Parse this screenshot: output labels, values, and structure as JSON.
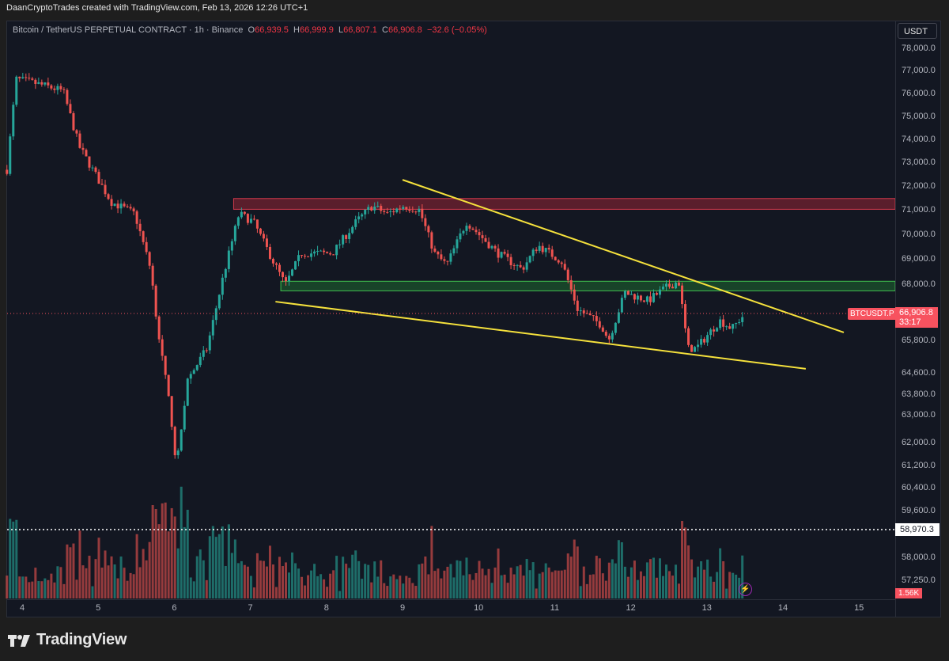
{
  "credit": "DaanCryptoTrades created with TradingView.com, Feb 13, 2026 12:26 UTC+1",
  "legend": {
    "symbol": "Bitcoin / TetherUS PERPETUAL CONTRACT · 1h · Binance",
    "o_label": "O",
    "o": "66,939.5",
    "h_label": "H",
    "h": "66,999.9",
    "l_label": "L",
    "l": "66,807.1",
    "c_label": "C",
    "c": "66,906.8",
    "change": "−32.6 (−0.05%)"
  },
  "currency_button": "USDT",
  "symbol_tag": "BTCUSDT.P",
  "last_price": "66,906.8",
  "countdown": "33:17",
  "low_marker": "58,970.3",
  "volume_label": "1.56K",
  "logo_text": "TradingView",
  "colors": {
    "up": "#26a69a",
    "down": "#ef5350",
    "trendline": "#f5e13c",
    "resistance_zone": "#b2283a",
    "support_zone": "#1e7a32",
    "price_line": "#f7525f",
    "background": "#131722"
  },
  "chart_data": {
    "type": "candlestick",
    "interval": "1h",
    "price_ticks": [
      "78,000.0",
      "77,000.0",
      "76,000.0",
      "75,000.0",
      "74,000.0",
      "73,000.0",
      "72,000.0",
      "71,000.0",
      "70,000.0",
      "69,000.0",
      "68,000.0",
      "65,800.0",
      "64,600.0",
      "63,800.0",
      "63,000.0",
      "62,000.0",
      "61,200.0",
      "60,400.0",
      "59,600.0",
      "58,000.0",
      "57,250.0"
    ],
    "time_ticks": [
      "4",
      "5",
      "6",
      "7",
      "8",
      "9",
      "10",
      "11",
      "12",
      "13",
      "14",
      "15"
    ],
    "price_path": [
      [
        3.8,
        72900
      ],
      [
        3.92,
        76670
      ],
      [
        4.18,
        76500
      ],
      [
        4.54,
        76180
      ],
      [
        4.75,
        73870
      ],
      [
        5.17,
        71560
      ],
      [
        5.48,
        71060
      ],
      [
        5.69,
        68750
      ],
      [
        5.79,
        66110
      ],
      [
        5.95,
        62810
      ],
      [
        6.03,
        60500
      ],
      [
        6.17,
        64130
      ],
      [
        6.43,
        65450
      ],
      [
        6.64,
        68420
      ],
      [
        6.85,
        71060
      ],
      [
        7.04,
        70730
      ],
      [
        7.3,
        69080
      ],
      [
        7.46,
        68100
      ],
      [
        7.67,
        69420
      ],
      [
        8.08,
        69420
      ],
      [
        8.39,
        70730
      ],
      [
        8.6,
        71390
      ],
      [
        8.8,
        71060
      ],
      [
        9.01,
        71390
      ],
      [
        9.22,
        71230
      ],
      [
        9.42,
        69420
      ],
      [
        9.58,
        68920
      ],
      [
        9.84,
        70730
      ],
      [
        10.25,
        69420
      ],
      [
        10.57,
        68750
      ],
      [
        10.78,
        69750
      ],
      [
        11.09,
        69080
      ],
      [
        11.3,
        67100
      ],
      [
        11.61,
        66440
      ],
      [
        11.71,
        65800
      ],
      [
        11.92,
        67770
      ],
      [
        12.23,
        67440
      ],
      [
        12.44,
        67940
      ],
      [
        12.63,
        68260
      ],
      [
        12.75,
        65450
      ],
      [
        12.86,
        65450
      ],
      [
        13.17,
        66610
      ],
      [
        13.33,
        66280
      ],
      [
        13.5,
        66906.8
      ]
    ],
    "low": 58970.3,
    "last": 66906.8,
    "zones": [
      {
        "type": "resistance",
        "from_day": 6.78,
        "low": 71250,
        "high": 71700
      },
      {
        "type": "support",
        "from_day": 7.4,
        "low": 67850,
        "high": 68250
      }
    ],
    "trendlines": [
      {
        "name": "upper",
        "p1": [
          9.0,
          72480
        ],
        "p2": [
          14.8,
          66115
        ]
      },
      {
        "name": "lower",
        "p1": [
          7.33,
          67400
        ],
        "p2": [
          14.3,
          64600
        ]
      }
    ]
  }
}
